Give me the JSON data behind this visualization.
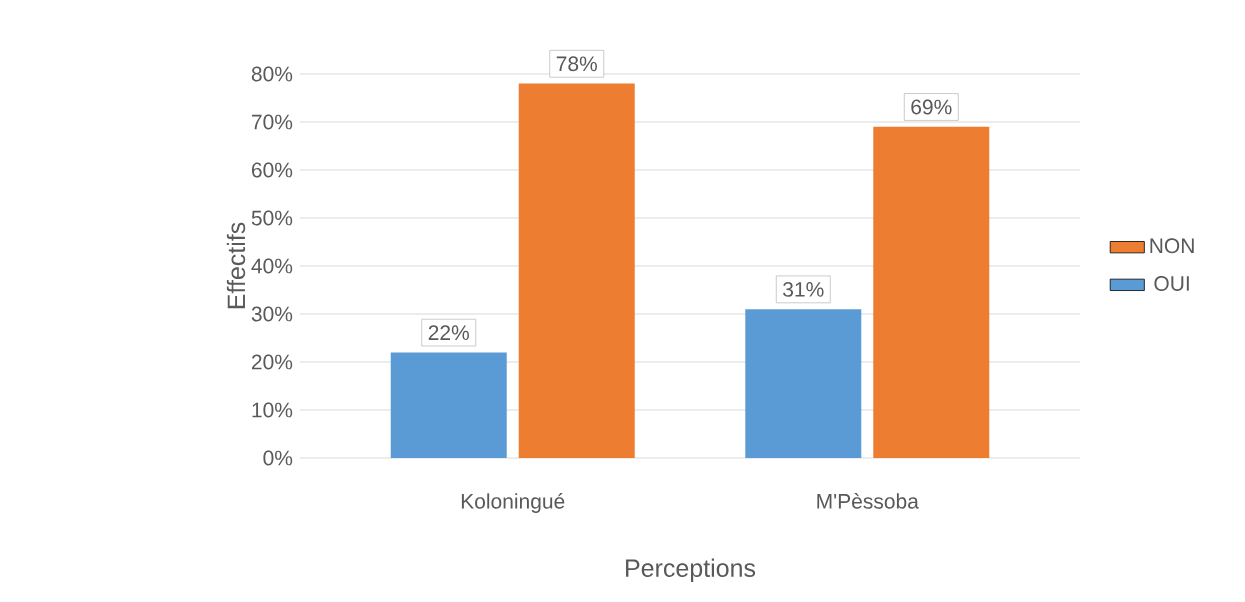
{
  "chart_data": {
    "type": "bar",
    "xlabel": "Perceptions",
    "ylabel": "Effectifs",
    "categories": [
      "Koloningué",
      "M'Pèssoba"
    ],
    "series": [
      {
        "name": "OUI",
        "color": "#5b9bd5",
        "values": [
          22,
          31
        ],
        "value_labels": [
          "22%",
          "31%"
        ]
      },
      {
        "name": "NON",
        "color": "#ed7d31",
        "values": [
          78,
          69
        ],
        "value_labels": [
          "78%",
          "69%"
        ]
      }
    ],
    "ylim": [
      0,
      80
    ],
    "yticks": [
      {
        "value": 0,
        "label": "0%"
      },
      {
        "value": 10,
        "label": "10%"
      },
      {
        "value": 20,
        "label": "20%"
      },
      {
        "value": 30,
        "label": "30%"
      },
      {
        "value": 40,
        "label": "40%"
      },
      {
        "value": 50,
        "label": "50%"
      },
      {
        "value": 60,
        "label": "60%"
      },
      {
        "value": 70,
        "label": "70%"
      },
      {
        "value": 80,
        "label": "80%"
      }
    ],
    "grid": "y",
    "legend": "right"
  }
}
